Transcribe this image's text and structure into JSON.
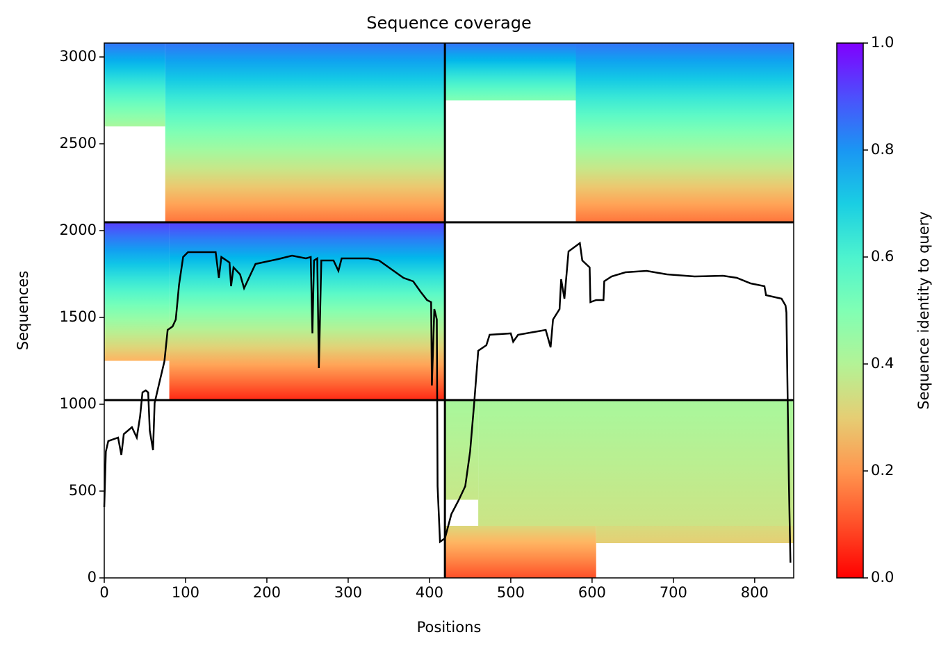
{
  "chart_data": {
    "type": "coverage",
    "title": "Sequence coverage",
    "xlabel": "Positions",
    "ylabel": "Sequences",
    "xlim": [
      0,
      848
    ],
    "xticks": [
      0,
      100,
      200,
      300,
      400,
      500,
      600,
      700,
      800
    ],
    "ylim": [
      0,
      3080
    ],
    "yticks": [
      0,
      500,
      1000,
      1500,
      2000,
      2500,
      3000
    ],
    "regions": [
      {
        "x": [
          75,
          419
        ],
        "y": [
          2048,
          3080
        ],
        "identity": [
          0.85,
          0.15
        ]
      },
      {
        "x": [
          0,
          75
        ],
        "y": [
          2600,
          3080
        ],
        "identity": [
          0.85,
          0.42
        ]
      },
      {
        "x": [
          580,
          848
        ],
        "y": [
          2048,
          3080
        ],
        "identity": [
          0.85,
          0.15
        ]
      },
      {
        "x": [
          419,
          580
        ],
        "y": [
          2750,
          3080
        ],
        "identity": [
          0.85,
          0.5
        ]
      },
      {
        "x": [
          80,
          419
        ],
        "y": [
          1024,
          2048
        ],
        "identity": [
          0.92,
          0.05
        ]
      },
      {
        "x": [
          0,
          80
        ],
        "y": [
          1250,
          2048
        ],
        "identity": [
          0.92,
          0.25
        ]
      },
      {
        "x": [
          460,
          848
        ],
        "y": [
          300,
          1024
        ],
        "identity": [
          0.42,
          0.35
        ]
      },
      {
        "x": [
          419,
          460
        ],
        "y": [
          450,
          1024
        ],
        "identity": [
          0.42,
          0.36
        ]
      },
      {
        "x": [
          419,
          605
        ],
        "y": [
          0,
          300
        ],
        "identity": [
          0.32,
          0.1
        ]
      },
      {
        "x": [
          605,
          848
        ],
        "y": [
          200,
          300
        ],
        "identity": [
          0.33,
          0.3
        ]
      }
    ],
    "dividers": {
      "x": [
        419
      ],
      "y": [
        1024,
        2048
      ]
    },
    "coverage": {
      "x": [
        0,
        2,
        5,
        17,
        21,
        24,
        34,
        40,
        44,
        47,
        51,
        54,
        56,
        60,
        62,
        68,
        74,
        78,
        84,
        88,
        92,
        97,
        103,
        137,
        141,
        144,
        154,
        156,
        159,
        167,
        172,
        178,
        186,
        214,
        231,
        248,
        254,
        256,
        258,
        262,
        264,
        267,
        282,
        288,
        292,
        325,
        338,
        350,
        368,
        380,
        389,
        397,
        402,
        403,
        406,
        409,
        410,
        413,
        419,
        427,
        436,
        444,
        450,
        455,
        460,
        470,
        474,
        500,
        503,
        509,
        543,
        549,
        552,
        560,
        562,
        566,
        571,
        585,
        588,
        597,
        598,
        605,
        614,
        615,
        624,
        641,
        667,
        692,
        726,
        761,
        778,
        795,
        812,
        814,
        833,
        838,
        839,
        842,
        844
      ],
      "values": [
        408,
        728,
        788,
        808,
        708,
        828,
        868,
        808,
        928,
        1068,
        1080,
        1068,
        848,
        736,
        1008,
        1128,
        1248,
        1428,
        1448,
        1488,
        1688,
        1848,
        1876,
        1876,
        1728,
        1848,
        1816,
        1680,
        1788,
        1748,
        1668,
        1728,
        1808,
        1836,
        1856,
        1840,
        1848,
        1408,
        1828,
        1840,
        1208,
        1828,
        1828,
        1768,
        1840,
        1840,
        1828,
        1788,
        1728,
        1708,
        1648,
        1600,
        1588,
        1108,
        1548,
        1488,
        528,
        208,
        228,
        368,
        448,
        528,
        728,
        1008,
        1308,
        1340,
        1400,
        1408,
        1360,
        1400,
        1428,
        1328,
        1488,
        1548,
        1720,
        1608,
        1880,
        1928,
        1828,
        1788,
        1588,
        1600,
        1600,
        1708,
        1736,
        1760,
        1768,
        1748,
        1736,
        1740,
        1728,
        1696,
        1680,
        1628,
        1608,
        1568,
        1528,
        568,
        88
      ]
    },
    "colorbar": {
      "label": "Sequence identity to query",
      "clim": [
        0,
        1
      ],
      "ticks": [
        {
          "value": 0,
          "label": "0.0"
        },
        {
          "value": 0.2,
          "label": "0.2"
        },
        {
          "value": 0.4,
          "label": "0.4"
        },
        {
          "value": 0.6,
          "label": "0.6"
        },
        {
          "value": 0.8,
          "label": "0.8"
        },
        {
          "value": 1,
          "label": "1.0"
        }
      ]
    }
  }
}
